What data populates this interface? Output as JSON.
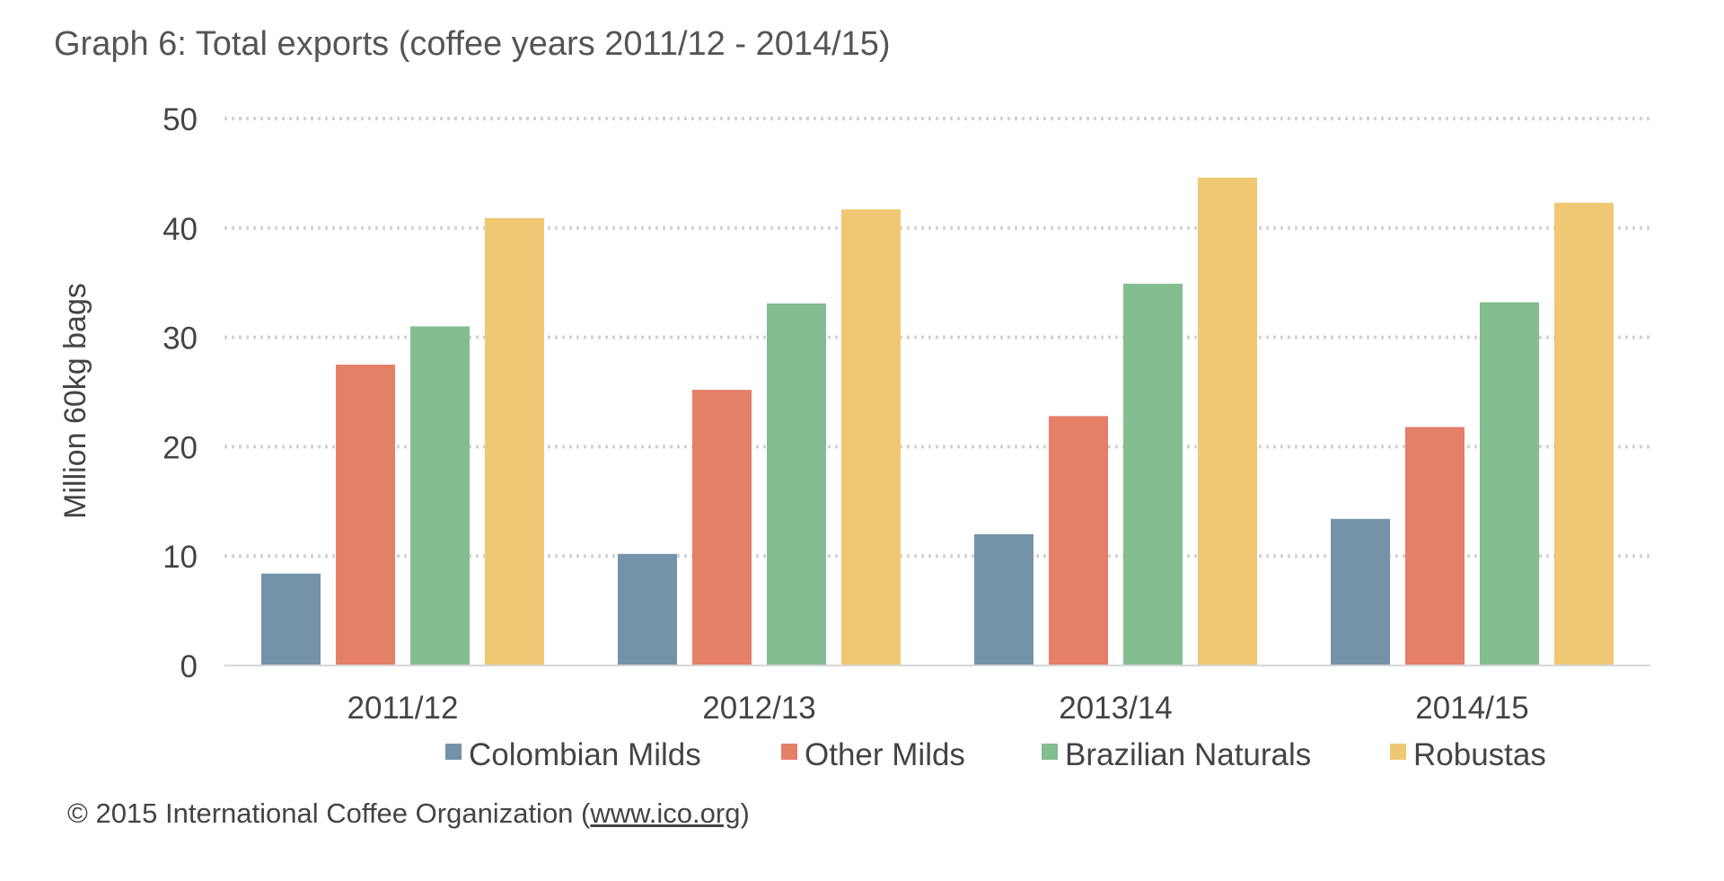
{
  "chart_data": {
    "type": "bar",
    "title": "Graph 6: Total exports (coffee years 2011/12 - 2014/15)",
    "xlabel": "",
    "ylabel": "Million 60kg bags",
    "ylim": [
      0,
      50
    ],
    "yticks": [
      "0",
      "10",
      "20",
      "30",
      "40",
      "50"
    ],
    "grid": true,
    "legend_position": "bottom",
    "categories": [
      "2011/12",
      "2012/13",
      "2013/14",
      "2014/15"
    ],
    "series": [
      {
        "name": "Colombian Milds",
        "color": "#7593a8",
        "values": [
          8.4,
          10.2,
          12.0,
          13.4
        ]
      },
      {
        "name": "Other Milds",
        "color": "#e47f68",
        "values": [
          27.5,
          25.2,
          22.8,
          21.8
        ]
      },
      {
        "name": "Brazilian Naturals",
        "color": "#84bd8f",
        "values": [
          31.0,
          33.1,
          34.9,
          33.2
        ]
      },
      {
        "name": "Robustas",
        "color": "#f0c873",
        "values": [
          40.9,
          41.7,
          44.6,
          42.3
        ]
      }
    ]
  },
  "footer": {
    "prefix": "© 2015 International Coffee Organization (",
    "link_text": "www.ico.org",
    "suffix": ")"
  }
}
